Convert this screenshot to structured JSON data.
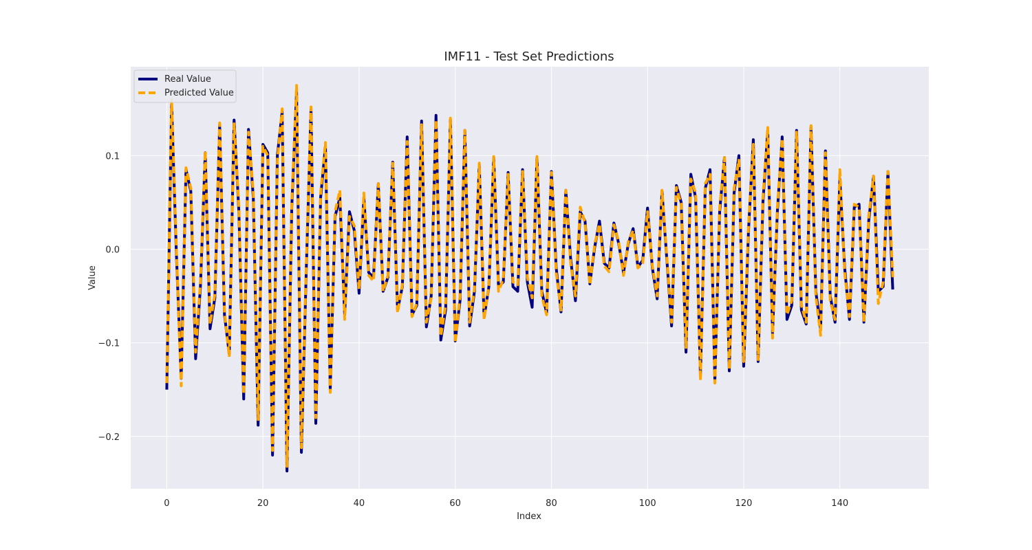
{
  "chart_data": {
    "type": "line",
    "title": "IMF11 - Test Set Predictions",
    "xlabel": "Index",
    "ylabel": "Value",
    "xlim": [
      -7.5,
      158.5
    ],
    "ylim": [
      -0.256,
      0.195
    ],
    "xticks": [
      0,
      20,
      40,
      60,
      80,
      100,
      120,
      140
    ],
    "yticks": [
      -0.2,
      -0.1,
      0.0,
      0.1
    ],
    "ytick_labels": [
      "−0.2",
      "−0.1",
      "0.0",
      "0.1"
    ],
    "grid": true,
    "legend": "top-left",
    "x": [
      0,
      1,
      2,
      3,
      4,
      5,
      6,
      7,
      8,
      9,
      10,
      11,
      12,
      13,
      14,
      15,
      16,
      17,
      18,
      19,
      20,
      21,
      22,
      23,
      24,
      25,
      26,
      27,
      28,
      29,
      30,
      31,
      32,
      33,
      34,
      35,
      36,
      37,
      38,
      39,
      40,
      41,
      42,
      43,
      44,
      45,
      46,
      47,
      48,
      49,
      50,
      51,
      52,
      53,
      54,
      55,
      56,
      57,
      58,
      59,
      60,
      61,
      62,
      63,
      64,
      65,
      66,
      67,
      68,
      69,
      70,
      71,
      72,
      73,
      74,
      75,
      76,
      77,
      78,
      79,
      80,
      81,
      82,
      83,
      84,
      85,
      86,
      87,
      88,
      89,
      90,
      91,
      92,
      93,
      94,
      95,
      96,
      97,
      98,
      99,
      100,
      101,
      102,
      103,
      104,
      105,
      106,
      107,
      108,
      109,
      110,
      111,
      112,
      113,
      114,
      115,
      116,
      117,
      118,
      119,
      120,
      121,
      122,
      123,
      124,
      125,
      126,
      127,
      128,
      129,
      130,
      131,
      132,
      133,
      134,
      135,
      136,
      137,
      138,
      139,
      140,
      141,
      142,
      143,
      144,
      145,
      146,
      147,
      148,
      149,
      150,
      151
    ],
    "series": [
      {
        "name": "Real Value",
        "color": "#000080",
        "style": "solid",
        "values": [
          -0.15,
          0.155,
          -0.005,
          -0.138,
          0.085,
          0.062,
          -0.117,
          -0.04,
          0.103,
          -0.085,
          -0.052,
          0.133,
          -0.07,
          -0.112,
          0.138,
          0.04,
          -0.16,
          0.128,
          0.055,
          -0.188,
          0.112,
          0.103,
          -0.22,
          0.1,
          0.147,
          -0.237,
          0.045,
          0.168,
          -0.217,
          -0.025,
          0.15,
          -0.186,
          0.055,
          0.11,
          -0.15,
          0.035,
          0.055,
          -0.07,
          0.04,
          0.02,
          -0.047,
          0.055,
          -0.025,
          -0.03,
          0.07,
          -0.045,
          -0.03,
          0.093,
          -0.065,
          -0.04,
          0.12,
          -0.07,
          -0.06,
          0.137,
          -0.083,
          -0.05,
          0.143,
          -0.097,
          -0.065,
          0.138,
          -0.098,
          -0.055,
          0.127,
          -0.082,
          -0.045,
          0.09,
          -0.073,
          -0.04,
          0.098,
          -0.04,
          -0.035,
          0.082,
          -0.04,
          -0.045,
          0.085,
          -0.035,
          -0.062,
          0.098,
          -0.045,
          -0.068,
          0.083,
          -0.02,
          -0.067,
          0.063,
          -0.01,
          -0.055,
          0.04,
          0.03,
          -0.037,
          0.002,
          0.03,
          -0.015,
          -0.02,
          0.028,
          0.006,
          -0.025,
          0.006,
          0.022,
          -0.019,
          -0.012,
          0.044,
          -0.02,
          -0.053,
          0.062,
          -0.01,
          -0.082,
          0.068,
          0.05,
          -0.11,
          0.08,
          0.055,
          -0.135,
          0.065,
          0.085,
          -0.14,
          0.04,
          0.098,
          -0.13,
          0.06,
          0.1,
          -0.125,
          0.02,
          0.117,
          -0.12,
          0.05,
          0.127,
          -0.09,
          0.04,
          0.12,
          -0.075,
          -0.06,
          0.127,
          -0.065,
          -0.08,
          0.13,
          -0.045,
          -0.085,
          0.105,
          -0.05,
          -0.078,
          0.075,
          -0.02,
          -0.075,
          0.045,
          0.048,
          -0.078,
          0.03,
          0.078,
          -0.045,
          -0.04,
          0.083,
          -0.043
        ]
      },
      {
        "name": "Predicted Value",
        "color": "#FFA500",
        "style": "dashed",
        "values": [
          -0.143,
          0.16,
          0.0,
          -0.146,
          0.087,
          0.065,
          -0.11,
          -0.035,
          0.105,
          -0.08,
          -0.048,
          0.135,
          -0.067,
          -0.115,
          0.134,
          0.045,
          -0.155,
          0.125,
          0.06,
          -0.182,
          0.11,
          0.1,
          -0.215,
          0.095,
          0.15,
          -0.232,
          0.05,
          0.175,
          -0.212,
          -0.02,
          0.152,
          -0.18,
          0.06,
          0.114,
          -0.153,
          0.04,
          0.063,
          -0.075,
          0.035,
          0.025,
          -0.043,
          0.06,
          -0.028,
          -0.034,
          0.07,
          -0.045,
          -0.028,
          0.092,
          -0.068,
          -0.038,
          0.115,
          -0.072,
          -0.058,
          0.133,
          -0.078,
          -0.052,
          0.138,
          -0.093,
          -0.06,
          0.14,
          -0.1,
          -0.05,
          0.127,
          -0.078,
          -0.042,
          0.092,
          -0.075,
          -0.038,
          0.099,
          -0.045,
          -0.032,
          0.08,
          -0.035,
          -0.038,
          0.083,
          -0.03,
          -0.052,
          0.099,
          -0.05,
          -0.07,
          0.082,
          -0.025,
          -0.065,
          0.063,
          -0.015,
          -0.05,
          0.045,
          0.028,
          -0.038,
          0.005,
          0.027,
          -0.018,
          -0.024,
          0.026,
          0.008,
          -0.028,
          0.008,
          0.02,
          -0.02,
          -0.015,
          0.04,
          -0.018,
          -0.05,
          0.063,
          -0.008,
          -0.078,
          0.066,
          0.048,
          -0.105,
          0.075,
          0.06,
          -0.14,
          0.07,
          0.08,
          -0.143,
          0.045,
          0.098,
          -0.128,
          0.065,
          0.095,
          -0.12,
          0.025,
          0.112,
          -0.118,
          0.055,
          0.13,
          -0.095,
          0.045,
          0.118,
          -0.07,
          -0.055,
          0.125,
          -0.06,
          -0.078,
          0.132,
          -0.05,
          -0.092,
          0.103,
          -0.055,
          -0.075,
          0.085,
          -0.025,
          -0.072,
          0.048,
          0.045,
          -0.078,
          0.035,
          0.078,
          -0.058,
          -0.035,
          0.083,
          -0.03
        ]
      }
    ]
  }
}
